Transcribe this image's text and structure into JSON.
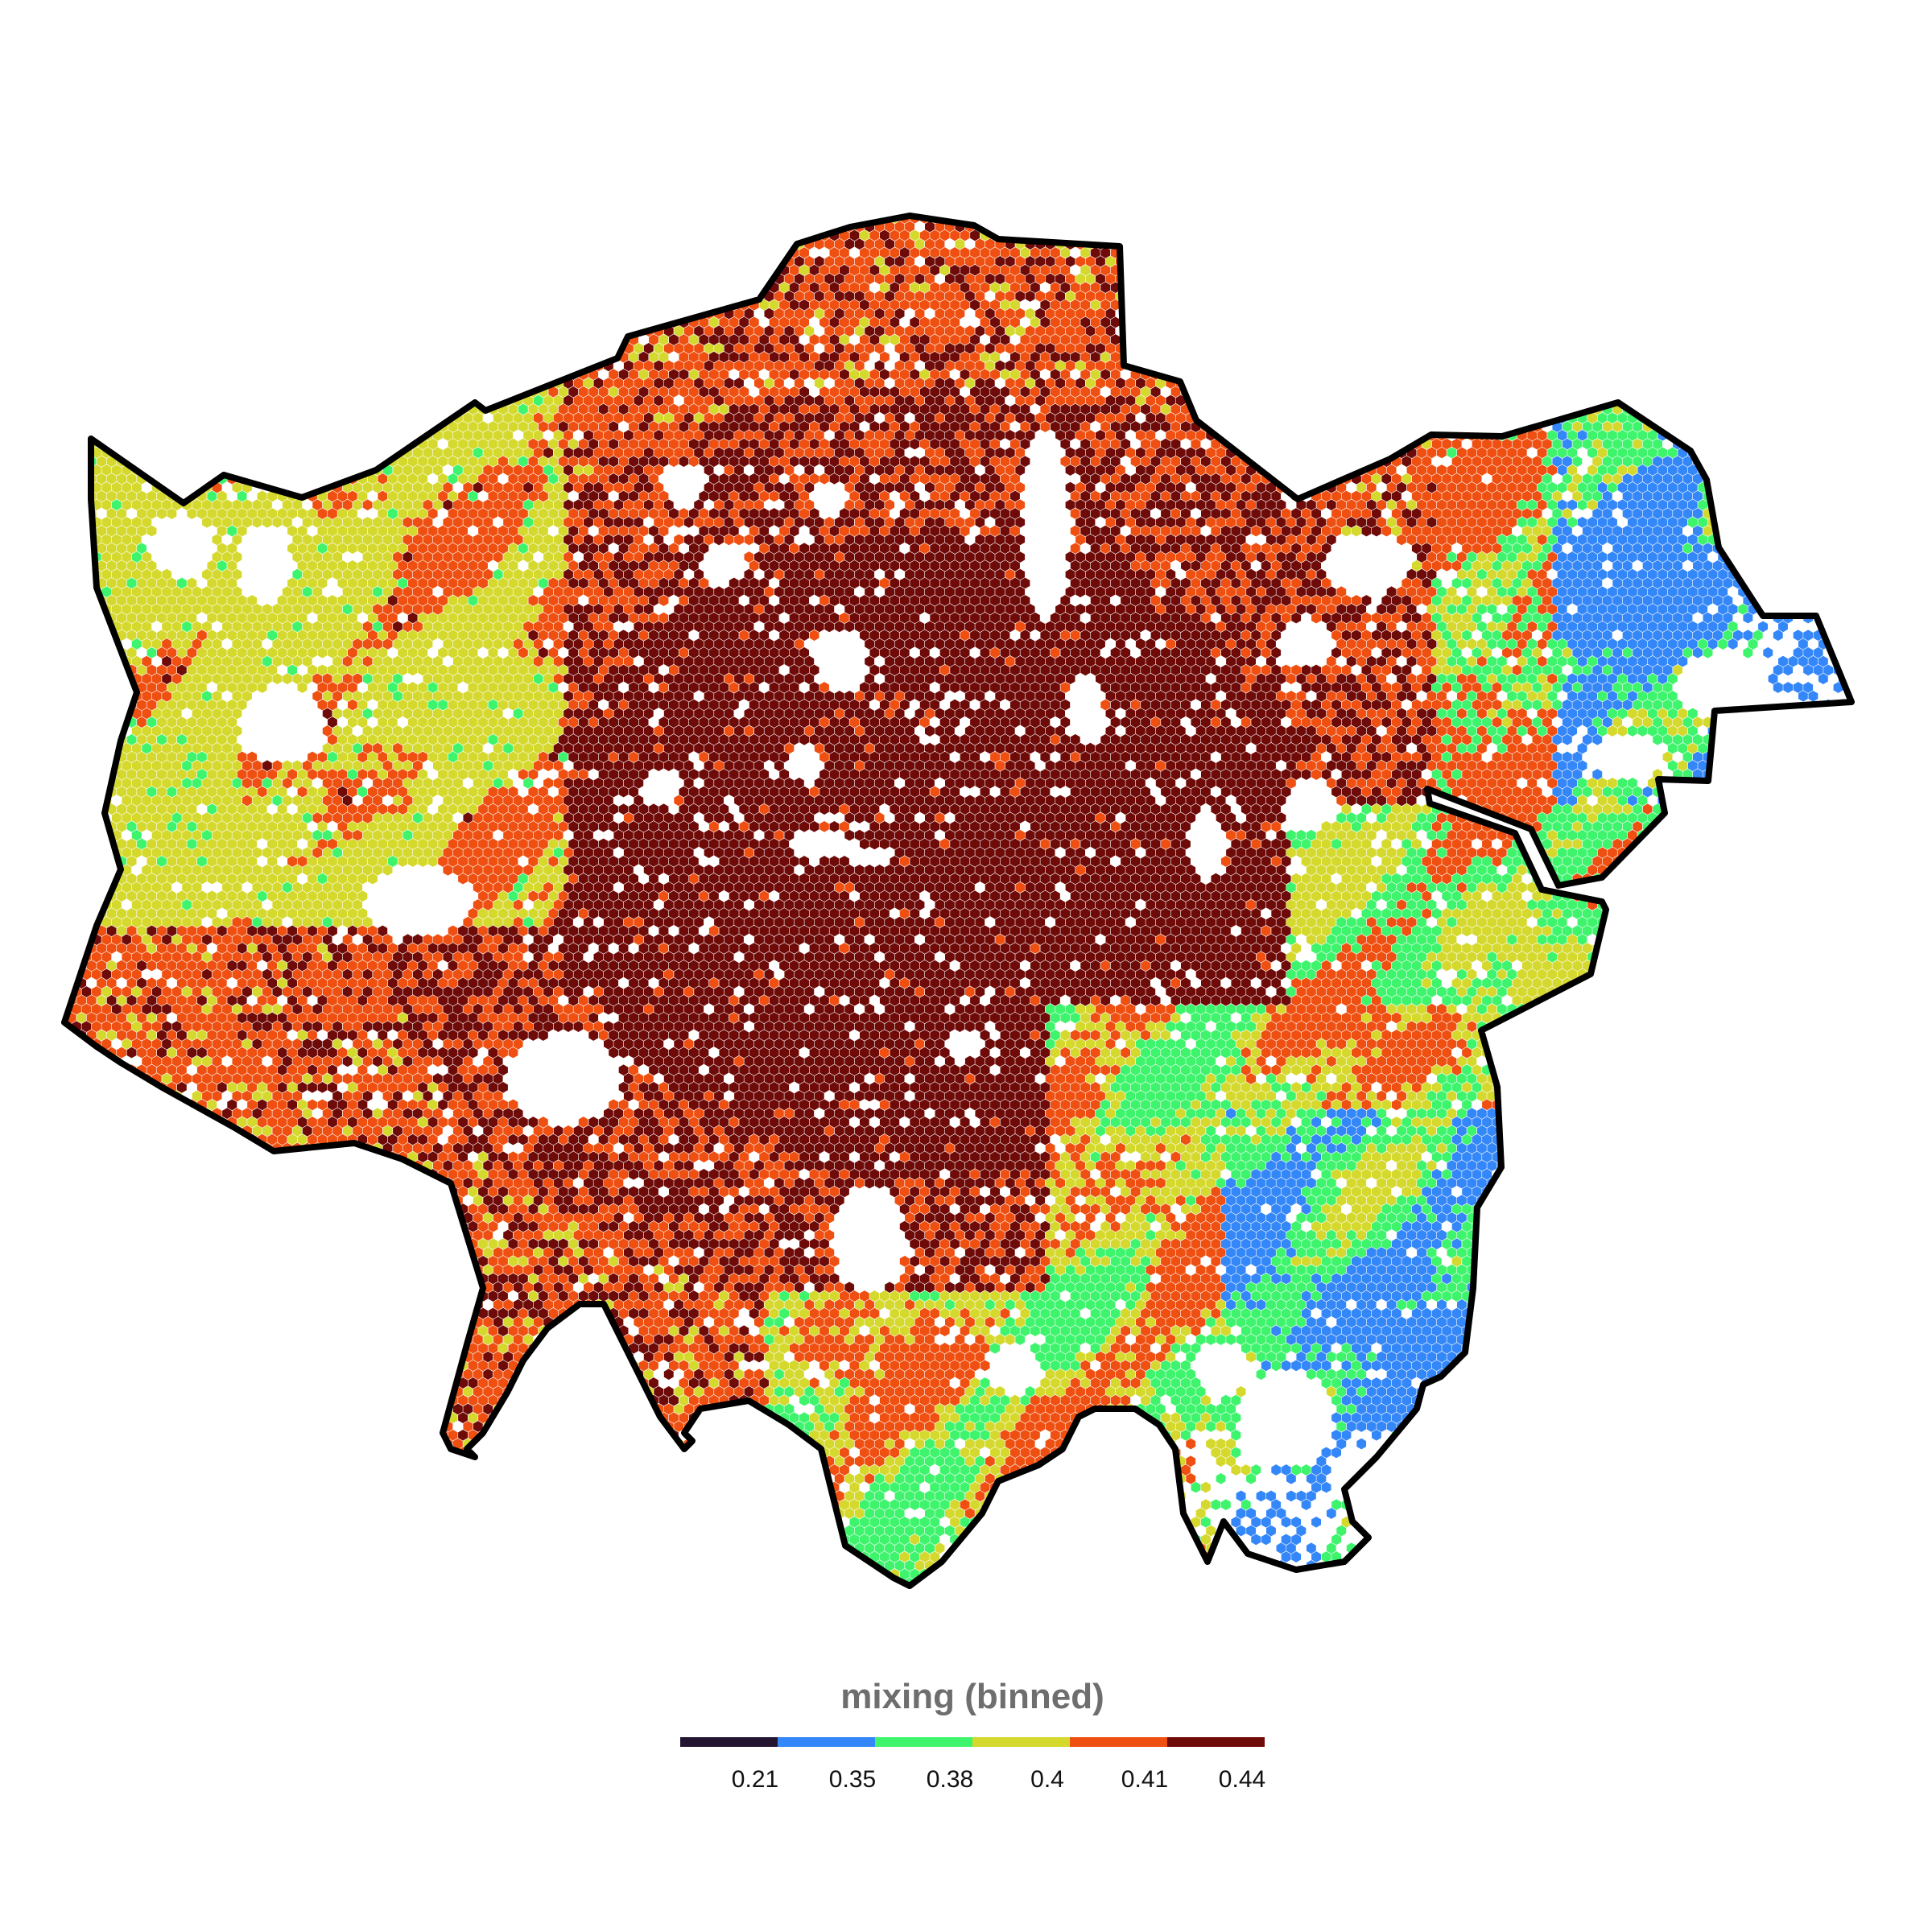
{
  "map": {
    "region": "Greater London",
    "hex_value_field": "mixing"
  },
  "legend": {
    "title": "mixing (binned)",
    "bins": [
      {
        "color": "#231430",
        "label": "0.21"
      },
      {
        "color": "#3487f8",
        "label": "0.35"
      },
      {
        "color": "#3ff46d",
        "label": "0.38"
      },
      {
        "color": "#d5d92e",
        "label": "0.4"
      },
      {
        "color": "#ef4f10",
        "label": "0.41"
      },
      {
        "color": "#6e0a08",
        "label": "0.44"
      }
    ]
  },
  "colors": {
    "outline": "#000000",
    "background": "#ffffff",
    "gap": "#ffffff"
  }
}
